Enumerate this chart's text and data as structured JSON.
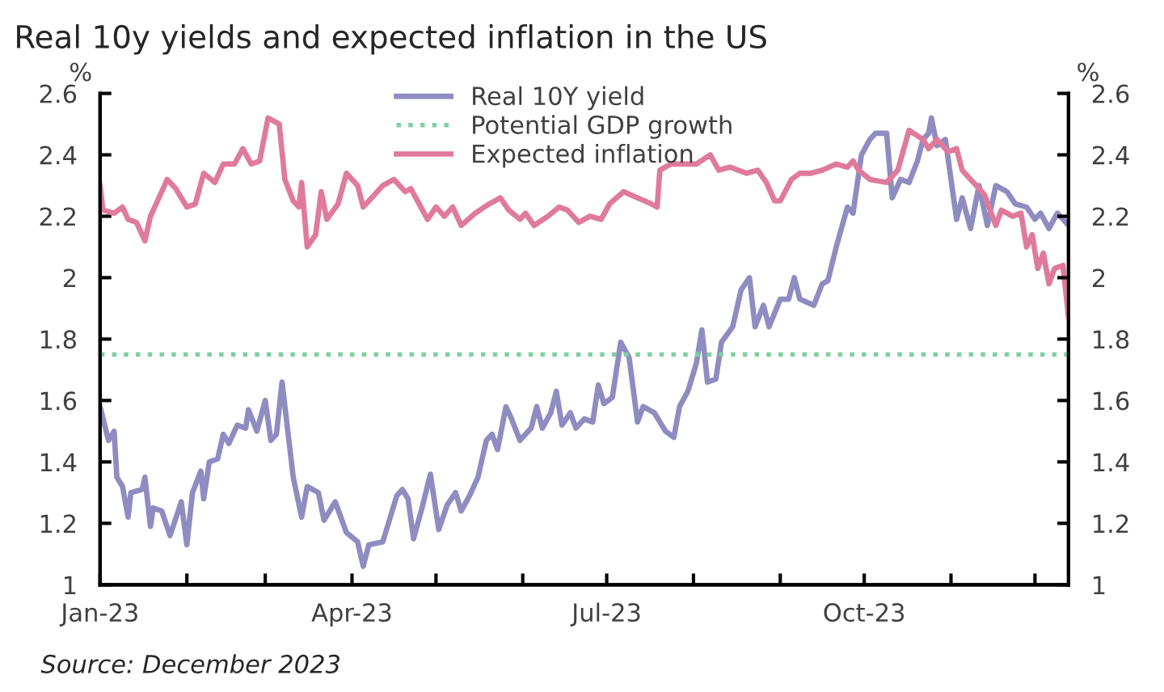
{
  "chart_data": {
    "type": "line",
    "title": "Real 10y yields and expected inflation in the US",
    "ylabel": "%",
    "y2label": "%",
    "annotations": [
      "Source: December 2023"
    ],
    "xlim": [
      "2023-01-01",
      "2023-12-13"
    ],
    "xticks": [
      {
        "value": "2023-01-01",
        "label": "Jan-23"
      },
      {
        "value": "2023-02-01",
        "label": null
      },
      {
        "value": "2023-03-01",
        "label": null
      },
      {
        "value": "2023-04-01",
        "label": "Apr-23"
      },
      {
        "value": "2023-05-01",
        "label": null
      },
      {
        "value": "2023-06-01",
        "label": null
      },
      {
        "value": "2023-07-01",
        "label": "Jul-23"
      },
      {
        "value": "2023-08-01",
        "label": null
      },
      {
        "value": "2023-09-01",
        "label": null
      },
      {
        "value": "2023-10-01",
        "label": "Oct-23"
      },
      {
        "value": "2023-11-01",
        "label": null
      },
      {
        "value": "2023-12-01",
        "label": null
      }
    ],
    "ylim": [
      1,
      2.6
    ],
    "yticks": [
      1,
      1.2,
      1.4,
      1.6,
      1.8,
      2,
      2.2,
      2.4,
      2.6
    ],
    "y2lim": [
      1,
      2.6
    ],
    "y2ticks": [
      1,
      1.2,
      1.4,
      1.6,
      1.8,
      2,
      2.2,
      2.4,
      2.6
    ],
    "grid": false,
    "legend": "top",
    "marker": "none",
    "series": [
      {
        "name": "Real 10Y yield",
        "color": "#8e8cc0",
        "line_style": "solid",
        "x": [
          "2023-01-01",
          "2023-01-04",
          "2023-01-06",
          "2023-01-07",
          "2023-01-09",
          "2023-01-11",
          "2023-01-12",
          "2023-01-16",
          "2023-01-17",
          "2023-01-19",
          "2023-01-20",
          "2023-01-23",
          "2023-01-26",
          "2023-01-30",
          "2023-02-01",
          "2023-02-03",
          "2023-02-06",
          "2023-02-07",
          "2023-02-09",
          "2023-02-12",
          "2023-02-14",
          "2023-02-16",
          "2023-02-19",
          "2023-02-22",
          "2023-02-23",
          "2023-02-26",
          "2023-03-01",
          "2023-03-03",
          "2023-03-05",
          "2023-03-07",
          "2023-03-11",
          "2023-03-14",
          "2023-03-16",
          "2023-03-20",
          "2023-03-22",
          "2023-03-26",
          "2023-03-30",
          "2023-04-03",
          "2023-04-05",
          "2023-04-07",
          "2023-04-12",
          "2023-04-17",
          "2023-04-19",
          "2023-04-21",
          "2023-04-23",
          "2023-04-26",
          "2023-04-29",
          "2023-05-02",
          "2023-05-05",
          "2023-05-08",
          "2023-05-10",
          "2023-05-13",
          "2023-05-16",
          "2023-05-19",
          "2023-05-21",
          "2023-05-23",
          "2023-05-26",
          "2023-05-28",
          "2023-05-31",
          "2023-06-04",
          "2023-06-06",
          "2023-06-08",
          "2023-06-11",
          "2023-06-13",
          "2023-06-15",
          "2023-06-18",
          "2023-06-20",
          "2023-06-23",
          "2023-06-26",
          "2023-06-28",
          "2023-06-30",
          "2023-07-03",
          "2023-07-06",
          "2023-07-09",
          "2023-07-12",
          "2023-07-14",
          "2023-07-18",
          "2023-07-22",
          "2023-07-25",
          "2023-07-27",
          "2023-07-30",
          "2023-08-02",
          "2023-08-04",
          "2023-08-06",
          "2023-08-09",
          "2023-08-11",
          "2023-08-15",
          "2023-08-18",
          "2023-08-21",
          "2023-08-23",
          "2023-08-26",
          "2023-08-28",
          "2023-09-01",
          "2023-09-04",
          "2023-09-06",
          "2023-09-08",
          "2023-09-13",
          "2023-09-16",
          "2023-09-18",
          "2023-09-21",
          "2023-09-25",
          "2023-09-27",
          "2023-09-30",
          "2023-10-03",
          "2023-10-05",
          "2023-10-09",
          "2023-10-11",
          "2023-10-14",
          "2023-10-17",
          "2023-10-20",
          "2023-10-22",
          "2023-10-24",
          "2023-10-25",
          "2023-10-27",
          "2023-10-30",
          "2023-11-03",
          "2023-11-05",
          "2023-11-08",
          "2023-11-11",
          "2023-11-14",
          "2023-11-17",
          "2023-11-21",
          "2023-11-24",
          "2023-11-28",
          "2023-12-01",
          "2023-12-03",
          "2023-12-06",
          "2023-12-09",
          "2023-12-11",
          "2023-12-13"
        ],
        "values": [
          1.58,
          1.47,
          1.5,
          1.35,
          1.32,
          1.22,
          1.3,
          1.31,
          1.35,
          1.19,
          1.25,
          1.24,
          1.16,
          1.27,
          1.13,
          1.3,
          1.37,
          1.28,
          1.4,
          1.41,
          1.49,
          1.46,
          1.52,
          1.51,
          1.57,
          1.5,
          1.6,
          1.47,
          1.49,
          1.66,
          1.35,
          1.22,
          1.32,
          1.3,
          1.21,
          1.27,
          1.17,
          1.14,
          1.06,
          1.13,
          1.14,
          1.29,
          1.31,
          1.28,
          1.15,
          1.25,
          1.36,
          1.18,
          1.26,
          1.3,
          1.24,
          1.29,
          1.35,
          1.47,
          1.49,
          1.44,
          1.58,
          1.54,
          1.47,
          1.51,
          1.58,
          1.51,
          1.56,
          1.63,
          1.52,
          1.56,
          1.51,
          1.54,
          1.53,
          1.65,
          1.59,
          1.61,
          1.79,
          1.74,
          1.53,
          1.58,
          1.56,
          1.5,
          1.48,
          1.58,
          1.63,
          1.72,
          1.83,
          1.66,
          1.67,
          1.79,
          1.84,
          1.96,
          2.0,
          1.84,
          1.91,
          1.84,
          1.93,
          1.93,
          2.0,
          1.93,
          1.91,
          1.98,
          1.99,
          2.1,
          2.23,
          2.21,
          2.4,
          2.45,
          2.47,
          2.47,
          2.26,
          2.32,
          2.31,
          2.38,
          2.45,
          2.47,
          2.52,
          2.43,
          2.45,
          2.19,
          2.26,
          2.16,
          2.3,
          2.17,
          2.3,
          2.28,
          2.24,
          2.23,
          2.19,
          2.21,
          2.16,
          2.21,
          2.19,
          2.17
        ]
      },
      {
        "name": "Potential GDP growth",
        "color": "#7fd19f",
        "line_style": "dotted",
        "x": [
          "2023-01-01",
          "2023-12-13"
        ],
        "values": [
          1.75,
          1.75
        ]
      },
      {
        "name": "Expected inflation",
        "color": "#e07a9b",
        "line_style": "solid",
        "x": [
          "2023-01-01",
          "2023-01-02",
          "2023-01-06",
          "2023-01-09",
          "2023-01-11",
          "2023-01-14",
          "2023-01-17",
          "2023-01-19",
          "2023-01-23",
          "2023-01-25",
          "2023-01-28",
          "2023-02-01",
          "2023-02-04",
          "2023-02-07",
          "2023-02-11",
          "2023-02-14",
          "2023-02-18",
          "2023-02-21",
          "2023-02-24",
          "2023-02-27",
          "2023-03-02",
          "2023-03-06",
          "2023-03-08",
          "2023-03-11",
          "2023-03-13",
          "2023-03-14",
          "2023-03-16",
          "2023-03-19",
          "2023-03-21",
          "2023-03-23",
          "2023-03-27",
          "2023-03-30",
          "2023-04-03",
          "2023-04-05",
          "2023-04-09",
          "2023-04-12",
          "2023-04-16",
          "2023-04-20",
          "2023-04-22",
          "2023-04-28",
          "2023-05-01",
          "2023-05-04",
          "2023-05-07",
          "2023-05-10",
          "2023-05-15",
          "2023-05-20",
          "2023-05-24",
          "2023-05-27",
          "2023-05-31",
          "2023-06-02",
          "2023-06-05",
          "2023-06-10",
          "2023-06-14",
          "2023-06-17",
          "2023-06-21",
          "2023-06-25",
          "2023-06-29",
          "2023-07-02",
          "2023-07-07",
          "2023-07-12",
          "2023-07-17",
          "2023-07-19",
          "2023-07-20",
          "2023-07-24",
          "2023-07-28",
          "2023-08-02",
          "2023-08-07",
          "2023-08-10",
          "2023-08-14",
          "2023-08-20",
          "2023-08-24",
          "2023-08-27",
          "2023-08-30",
          "2023-09-01",
          "2023-09-05",
          "2023-09-08",
          "2023-09-12",
          "2023-09-16",
          "2023-09-21",
          "2023-09-25",
          "2023-09-27",
          "2023-09-29",
          "2023-10-03",
          "2023-10-09",
          "2023-10-13",
          "2023-10-17",
          "2023-10-22",
          "2023-10-24",
          "2023-10-27",
          "2023-10-31",
          "2023-11-03",
          "2023-11-05",
          "2023-11-08",
          "2023-11-10",
          "2023-11-13",
          "2023-11-17",
          "2023-11-19",
          "2023-11-23",
          "2023-11-26",
          "2023-11-28",
          "2023-11-30",
          "2023-12-02",
          "2023-12-04",
          "2023-12-06",
          "2023-12-08",
          "2023-12-11",
          "2023-12-13"
        ],
        "values": [
          2.3,
          2.22,
          2.21,
          2.23,
          2.19,
          2.18,
          2.12,
          2.2,
          2.28,
          2.32,
          2.29,
          2.23,
          2.24,
          2.34,
          2.31,
          2.37,
          2.37,
          2.42,
          2.37,
          2.38,
          2.52,
          2.5,
          2.32,
          2.25,
          2.23,
          2.31,
          2.1,
          2.14,
          2.28,
          2.19,
          2.24,
          2.34,
          2.3,
          2.23,
          2.27,
          2.3,
          2.32,
          2.28,
          2.29,
          2.19,
          2.23,
          2.2,
          2.23,
          2.17,
          2.21,
          2.24,
          2.26,
          2.22,
          2.19,
          2.21,
          2.17,
          2.2,
          2.23,
          2.22,
          2.18,
          2.2,
          2.19,
          2.24,
          2.28,
          2.26,
          2.24,
          2.23,
          2.35,
          2.37,
          2.37,
          2.37,
          2.4,
          2.35,
          2.36,
          2.34,
          2.35,
          2.31,
          2.25,
          2.25,
          2.32,
          2.34,
          2.34,
          2.35,
          2.37,
          2.36,
          2.38,
          2.35,
          2.32,
          2.31,
          2.35,
          2.48,
          2.45,
          2.42,
          2.45,
          2.41,
          2.42,
          2.35,
          2.32,
          2.3,
          2.27,
          2.17,
          2.22,
          2.2,
          2.21,
          2.1,
          2.14,
          2.03,
          2.08,
          1.98,
          2.03,
          2.04,
          1.87
        ]
      }
    ]
  }
}
